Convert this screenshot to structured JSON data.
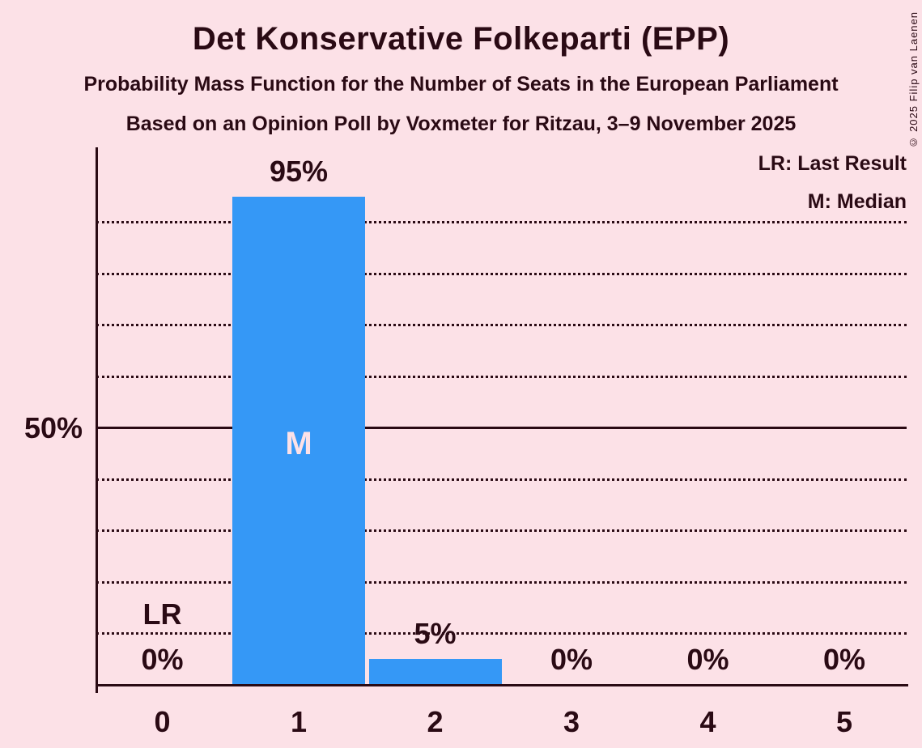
{
  "title": "Det Konservative Folkeparti (EPP)",
  "subtitle1": "Probability Mass Function for the Number of Seats in the European Parliament",
  "subtitle2": "Based on an Opinion Poll by Voxmeter for Ritzau, 3–9 November 2025",
  "copyright": "© 2025 Filip van Laenen",
  "legend": {
    "lr": "LR: Last Result",
    "m": "M: Median"
  },
  "colors": {
    "background": "#fce1e7",
    "bar": "#3598f6",
    "text": "#2a0a14",
    "median_label": "#fce1e7"
  },
  "chart_data": {
    "type": "bar",
    "title": "Probability Mass Function for the Number of Seats in the European Parliament",
    "categories": [
      "0",
      "1",
      "2",
      "3",
      "4",
      "5"
    ],
    "values": [
      0,
      95,
      5,
      0,
      0,
      0
    ],
    "value_labels": [
      "0%",
      "95%",
      "5%",
      "0%",
      "0%",
      "0%"
    ],
    "ylim": [
      0,
      100
    ],
    "y_axis_ticks": [
      {
        "value": 50,
        "label": "50%"
      }
    ],
    "gridlines": {
      "dotted_percents": [
        10,
        20,
        30,
        40,
        60,
        70,
        80,
        90
      ],
      "solid_percents": [
        50
      ]
    },
    "legend_position": "top-right",
    "legend_entries": [
      "LR: Last Result",
      "M: Median"
    ],
    "annotations": {
      "median": {
        "category": "1",
        "label": "M"
      },
      "last_result": {
        "category": "0",
        "label": "LR"
      }
    }
  }
}
